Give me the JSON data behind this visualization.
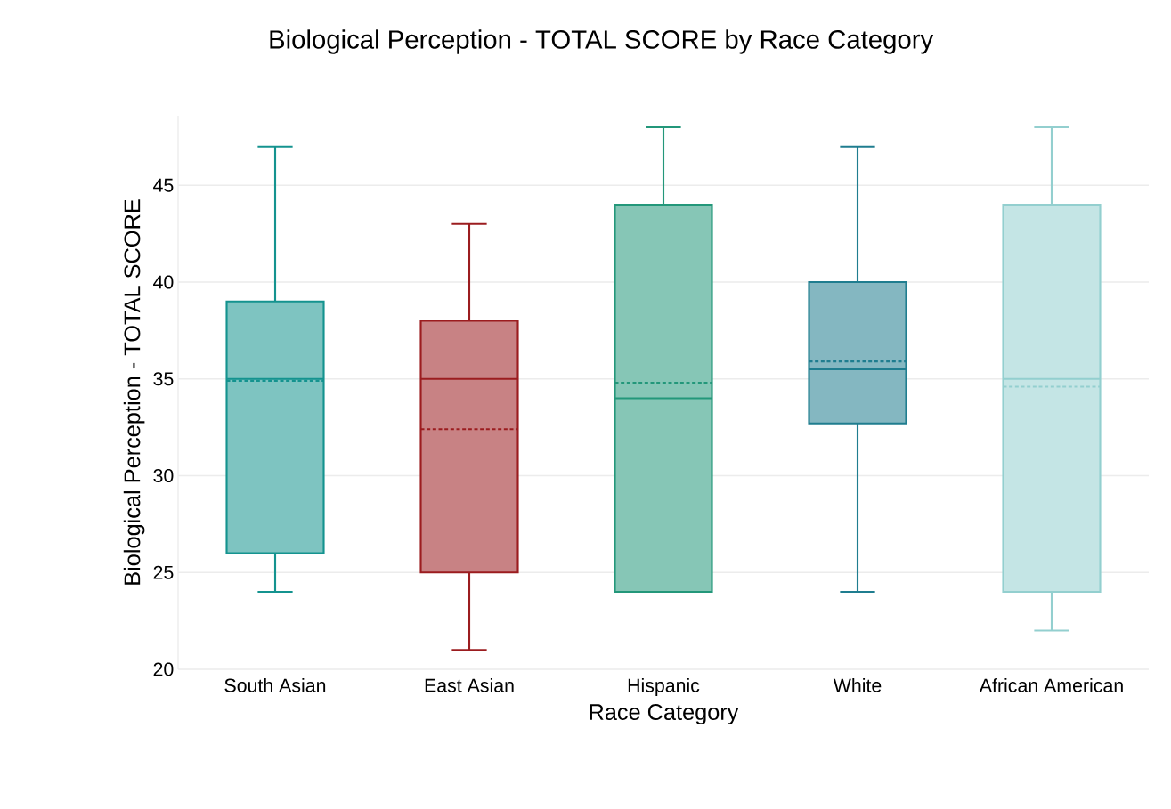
{
  "chart_data": {
    "type": "box",
    "title": "Biological Perception - TOTAL SCORE by Race Category",
    "xlabel": "Race Category",
    "ylabel": "Biological Perception - TOTAL SCORE",
    "categories": [
      "South Asian",
      "East Asian",
      "Hispanic",
      "White",
      "African American"
    ],
    "colors": [
      "#14938f",
      "#9b1c1f",
      "#23977a",
      "#1f7d8f",
      "#93cfcf"
    ],
    "boxes": [
      {
        "low": 24,
        "q1": 26,
        "median": 35,
        "q3": 39,
        "high": 47,
        "mean": 34.9
      },
      {
        "low": 21,
        "q1": 25,
        "median": 35,
        "q3": 38,
        "high": 43,
        "mean": 32.4
      },
      {
        "low": 24,
        "q1": 24,
        "median": 34,
        "q3": 44,
        "high": 48,
        "mean": 34.8
      },
      {
        "low": 24,
        "q1": 32.7,
        "median": 35.5,
        "q3": 40,
        "high": 47,
        "mean": 35.9
      },
      {
        "low": 22,
        "q1": 24,
        "median": 35,
        "q3": 44,
        "high": 48,
        "mean": 34.6
      }
    ],
    "ylim": [
      20,
      48.6
    ],
    "yticks": [
      20,
      25,
      30,
      35,
      40,
      45
    ],
    "grid": "y"
  }
}
